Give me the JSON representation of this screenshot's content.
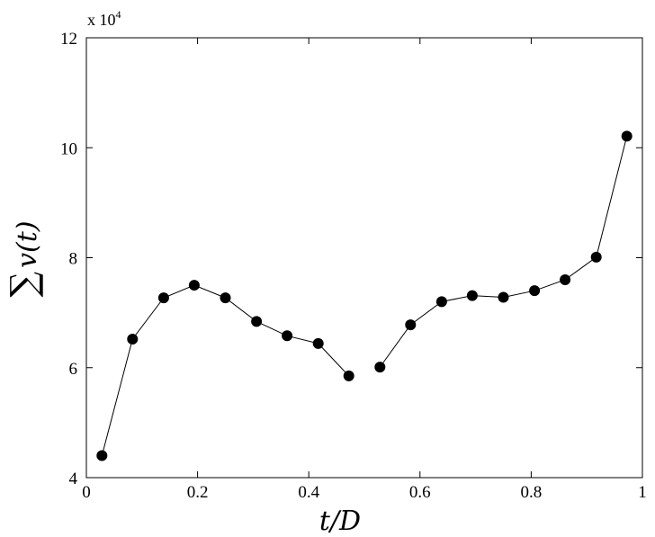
{
  "chart_data": {
    "type": "scatter",
    "xlabel": "t/D",
    "ylabel_symbol": "∑",
    "ylabel": "v(t)",
    "y_multiplier_base": "x 10",
    "y_multiplier_exponent": "4",
    "xlim": [
      0,
      1
    ],
    "ylim": [
      40000,
      120000
    ],
    "x_ticks": [
      0,
      0.2,
      0.4,
      0.6,
      0.8,
      1
    ],
    "x_tick_labels": [
      "0",
      "0.2",
      "0.4",
      "0.6",
      "0.8",
      "1"
    ],
    "y_ticks": [
      40000,
      60000,
      80000,
      100000,
      120000
    ],
    "y_tick_labels": [
      "4",
      "6",
      "8",
      "10",
      "12"
    ],
    "grid": false,
    "marker_color": "#000000",
    "line_color": "#000000",
    "series": [
      {
        "segments": [
          {
            "x": [
              0.028,
              0.083,
              0.139,
              0.194,
              0.25,
              0.306,
              0.361,
              0.417,
              0.472
            ],
            "y": [
              44000,
              65200,
              72700,
              75000,
              72700,
              68400,
              65800,
              64400,
              58500
            ]
          },
          {
            "x": [
              0.528,
              0.583,
              0.639,
              0.694,
              0.75,
              0.806,
              0.861,
              0.917,
              0.972
            ],
            "y": [
              60100,
              67800,
              72000,
              73100,
              72800,
              74000,
              76000,
              80100,
              102100
            ]
          }
        ]
      }
    ]
  }
}
